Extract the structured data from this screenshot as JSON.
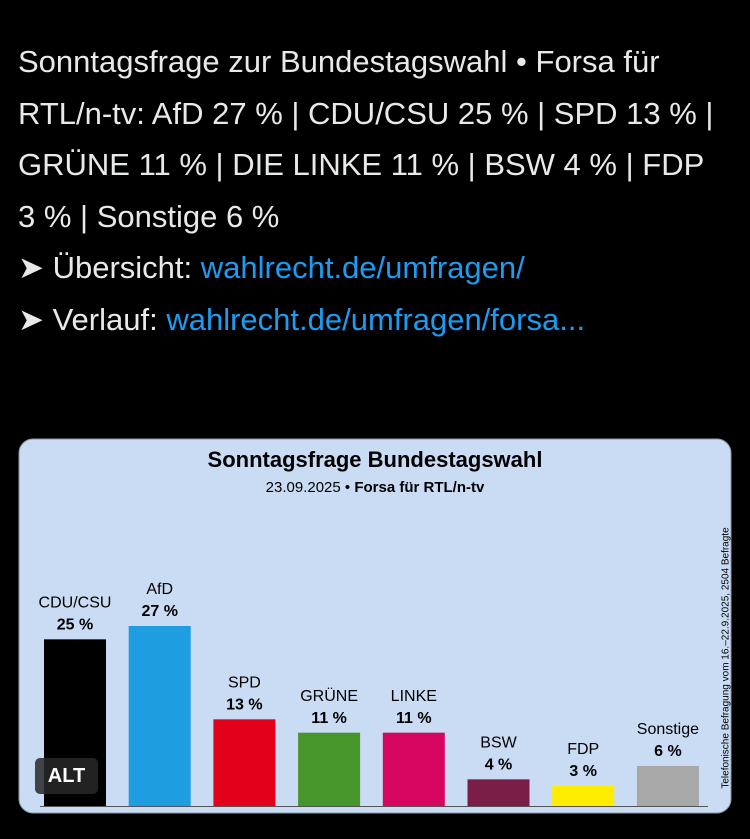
{
  "tweet": {
    "text": "Sonntagsfrage zur Bundestagswahl • Forsa für RTL/n-tv: AfD 27 % | CDU/CSU 25 % | SPD 13 % | GRÜNE 11 % | DIE LINKE 11 % | BSW 4 % | FDP 3 % | Sonstige 6 %",
    "links": [
      {
        "label": "➤ Übersicht:",
        "url": "wahlrecht.de/umfragen/"
      },
      {
        "label": "➤ Verlauf:",
        "url": "wahlrecht.de/umfragen/forsa..."
      }
    ]
  },
  "alt_badge": "ALT",
  "chart_data": {
    "type": "bar",
    "title": "Sonntagsfrage Bundestagswahl",
    "subtitle": [
      "23.09.2025 •",
      "Forsa für RTL/n-tv"
    ],
    "note": "Telefonische Befragung vom 16.–22.9.2025, 2504 Befragte",
    "categories": [
      "CDU/CSU",
      "AfD",
      "SPD",
      "GRÜNE",
      "LINKE",
      "BSW",
      "FDP",
      "Sonstige"
    ],
    "values": [
      25,
      27,
      13,
      11,
      11,
      4,
      3,
      6
    ],
    "value_labels": [
      "25 %",
      "27 %",
      "13 %",
      "11 %",
      "11 %",
      "4 %",
      "3 %",
      "6 %"
    ],
    "colors": [
      "#000000",
      "#1e9de0",
      "#e3001b",
      "#46962b",
      "#d6055f",
      "#7a1e48",
      "#ffed00",
      "#a8a8a8"
    ]
  }
}
